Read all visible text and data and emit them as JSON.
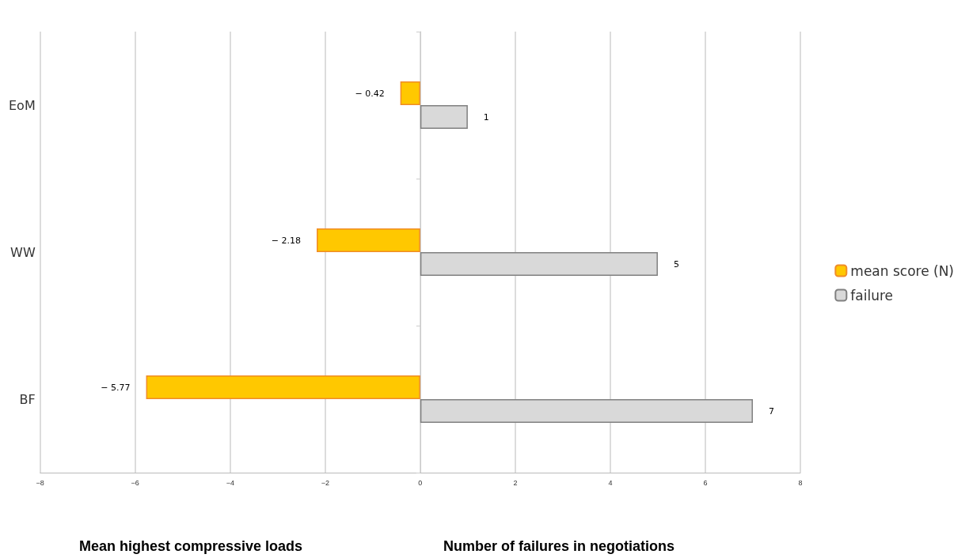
{
  "chart_data": {
    "type": "bar",
    "orientation": "horizontal",
    "categories": [
      "EoM",
      "WW",
      "BF"
    ],
    "series": [
      {
        "name": "mean score (N)",
        "color": "#ffc800",
        "values": [
          -0.42,
          -2.18,
          -5.77
        ],
        "value_labels": [
          "− 0.42",
          "− 2.18",
          "− 5.77"
        ]
      },
      {
        "name": "failure",
        "color": "#d9d9d9",
        "values": [
          1,
          5,
          7
        ],
        "value_labels": [
          "1",
          "5",
          "7"
        ]
      }
    ],
    "xlim": [
      -8,
      8
    ],
    "xticks": [
      {
        "value": -8,
        "label": "−8"
      },
      {
        "value": -6,
        "label": "−6"
      },
      {
        "value": -4,
        "label": "−4"
      },
      {
        "value": -2,
        "label": "−2"
      },
      0,
      2,
      4,
      6,
      8
    ],
    "grid": "x",
    "legend": "right",
    "annotations": [
      "Mean highest compressive loads",
      "Number of failures in negotiations"
    ]
  }
}
